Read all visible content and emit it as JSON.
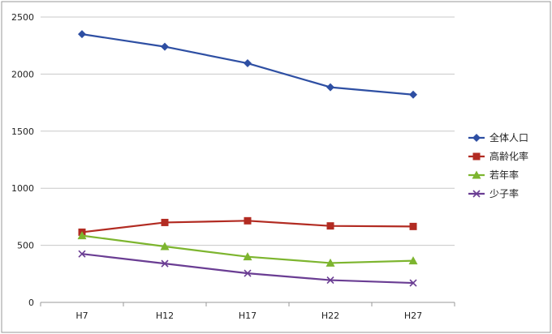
{
  "chart_data": {
    "type": "line",
    "title": "",
    "xlabel": "",
    "ylabel": "",
    "categories": [
      "H7",
      "H12",
      "H17",
      "H22",
      "H27"
    ],
    "ylim": [
      0,
      2500
    ],
    "yticks": [
      "0",
      "500",
      "1000",
      "1500",
      "2000",
      "2500"
    ],
    "grid": "horizontal",
    "legend_position": "right",
    "series": [
      {
        "name": "全体人口",
        "color": "#2E4FA3",
        "marker": "diamond",
        "values": [
          2350,
          2240,
          2095,
          1885,
          1820
        ]
      },
      {
        "name": "高齢化率",
        "color": "#B22B22",
        "marker": "square",
        "values": [
          615,
          700,
          715,
          670,
          665
        ]
      },
      {
        "name": "若年率",
        "color": "#7DB52F",
        "marker": "triangle",
        "values": [
          585,
          490,
          400,
          345,
          365
        ]
      },
      {
        "name": "少子率",
        "color": "#6A3D93",
        "marker": "x",
        "values": [
          425,
          340,
          255,
          195,
          170
        ]
      }
    ]
  }
}
